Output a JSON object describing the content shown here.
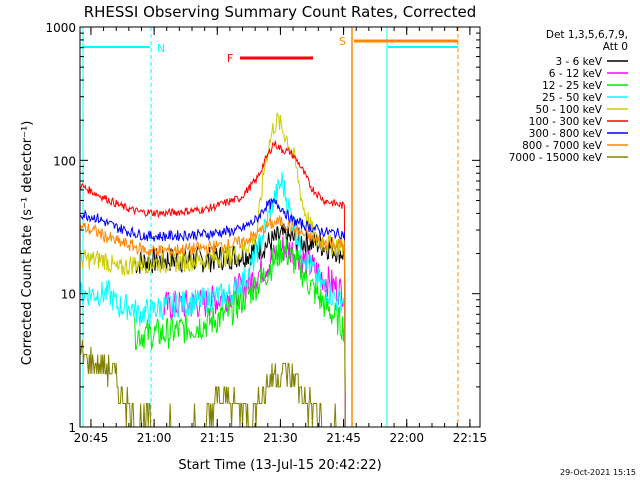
{
  "chart_data": {
    "type": "line",
    "title": "RHESSI Observing Summary Count Rates, Corrected",
    "xlabel": "Start Time (13-Jul-15 20:42:22)",
    "ylabel": "Corrected Count Rate (s⁻¹ detector⁻¹)",
    "yscale": "log",
    "ylim": [
      1,
      1000
    ],
    "xlim_minutes_after_2042": [
      0,
      95
    ],
    "x_ticks": [
      {
        "t": 2.6,
        "label": "20:45"
      },
      {
        "t": 17.6,
        "label": "21:00"
      },
      {
        "t": 32.6,
        "label": "21:15"
      },
      {
        "t": 47.6,
        "label": "21:30"
      },
      {
        "t": 62.6,
        "label": "21:45"
      },
      {
        "t": 77.6,
        "label": "22:00"
      },
      {
        "t": 92.6,
        "label": "22:15"
      }
    ],
    "y_ticks": [
      {
        "v": 1,
        "label": "1"
      },
      {
        "v": 10,
        "label": "10"
      },
      {
        "v": 100,
        "label": "100"
      },
      {
        "v": 1000,
        "label": "1000"
      }
    ],
    "legend_header": [
      "Det 1,3,5,6,7,9,",
      "Att 0"
    ],
    "series": [
      {
        "name": "3 - 6 keV",
        "color": "#000000",
        "points": [
          [
            13,
            17
          ],
          [
            20,
            18
          ],
          [
            30,
            18
          ],
          [
            40,
            20
          ],
          [
            45,
            24
          ],
          [
            48,
            27
          ],
          [
            52,
            25
          ],
          [
            56,
            24
          ],
          [
            60,
            22
          ],
          [
            63,
            20
          ]
        ]
      },
      {
        "name": "6 - 12 keV",
        "color": "#ff00ff",
        "points": [
          [
            20,
            8
          ],
          [
            30,
            8.5
          ],
          [
            36,
            10
          ],
          [
            40,
            12
          ],
          [
            44,
            16
          ],
          [
            48,
            22
          ],
          [
            51,
            21
          ],
          [
            54,
            17
          ],
          [
            58,
            13
          ],
          [
            62,
            10.5
          ],
          [
            63,
            10.5
          ]
        ]
      },
      {
        "name": "12 - 25 keV",
        "color": "#00ee00",
        "points": [
          [
            13,
            5
          ],
          [
            20,
            5
          ],
          [
            30,
            6
          ],
          [
            35,
            7
          ],
          [
            40,
            10
          ],
          [
            44,
            14
          ],
          [
            48,
            22
          ],
          [
            52,
            16
          ],
          [
            56,
            10
          ],
          [
            60,
            7
          ],
          [
            63,
            5.5
          ]
        ]
      },
      {
        "name": "25 - 50 keV",
        "color": "#00ffff",
        "points": [
          [
            0,
            10
          ],
          [
            7,
            10
          ],
          [
            9,
            8
          ],
          [
            12,
            8
          ],
          [
            14,
            7
          ],
          [
            20,
            8
          ],
          [
            30,
            9
          ],
          [
            36,
            10
          ],
          [
            40,
            14
          ],
          [
            43,
            25
          ],
          [
            46,
            50
          ],
          [
            48,
            70
          ],
          [
            50,
            40
          ],
          [
            53,
            20
          ],
          [
            57,
            12
          ],
          [
            61,
            9
          ],
          [
            63,
            9
          ]
        ]
      },
      {
        "name": "50 - 100 keV",
        "color": "#cccc00",
        "points": [
          [
            0,
            18
          ],
          [
            6,
            18
          ],
          [
            9,
            15
          ],
          [
            13,
            17
          ],
          [
            20,
            17
          ],
          [
            30,
            18
          ],
          [
            38,
            20
          ],
          [
            42,
            28
          ],
          [
            44,
            100
          ],
          [
            46,
            180
          ],
          [
            47,
            200
          ],
          [
            49,
            150
          ],
          [
            51,
            100
          ],
          [
            53,
            45
          ],
          [
            56,
            25
          ],
          [
            60,
            23
          ],
          [
            63,
            22
          ]
        ]
      },
      {
        "name": "100 - 300 keV",
        "color": "#ff0000",
        "points": [
          [
            0,
            65
          ],
          [
            3,
            58
          ],
          [
            6,
            52
          ],
          [
            10,
            45
          ],
          [
            14,
            41
          ],
          [
            20,
            40
          ],
          [
            30,
            43
          ],
          [
            38,
            52
          ],
          [
            42,
            72
          ],
          [
            44,
            100
          ],
          [
            46,
            135
          ],
          [
            48,
            120
          ],
          [
            50,
            115
          ],
          [
            52,
            95
          ],
          [
            55,
            62
          ],
          [
            58,
            50
          ],
          [
            61,
            47
          ],
          [
            63,
            45
          ]
        ]
      },
      {
        "name": "300 - 800 keV",
        "color": "#0000ff",
        "points": [
          [
            0,
            40
          ],
          [
            4,
            37
          ],
          [
            8,
            32
          ],
          [
            12,
            29
          ],
          [
            16,
            27
          ],
          [
            20,
            27
          ],
          [
            30,
            28
          ],
          [
            38,
            30
          ],
          [
            42,
            36
          ],
          [
            44,
            45
          ],
          [
            46,
            48
          ],
          [
            48,
            44
          ],
          [
            50,
            36
          ],
          [
            54,
            32
          ],
          [
            58,
            29
          ],
          [
            63,
            28
          ]
        ]
      },
      {
        "name": "800 - 7000 keV",
        "color": "#ff8800",
        "points": [
          [
            0,
            32
          ],
          [
            4,
            29
          ],
          [
            8,
            25
          ],
          [
            12,
            23
          ],
          [
            16,
            21
          ],
          [
            20,
            21
          ],
          [
            30,
            22
          ],
          [
            38,
            24
          ],
          [
            42,
            28
          ],
          [
            45,
            33
          ],
          [
            48,
            35
          ],
          [
            51,
            30
          ],
          [
            55,
            26
          ],
          [
            59,
            24
          ],
          [
            63,
            23
          ]
        ]
      },
      {
        "name": "7000 - 15000 keV",
        "color": "#808000",
        "points": [
          [
            0,
            3.5
          ],
          [
            3,
            3
          ],
          [
            6,
            2.8
          ],
          [
            8,
            2.5
          ],
          [
            10,
            1.6
          ],
          [
            12,
            1.4
          ],
          [
            13,
            1.2
          ],
          [
            14,
            1.1
          ],
          [
            18,
            1
          ],
          [
            30,
            1
          ],
          [
            32,
            1.5
          ],
          [
            35,
            1.7
          ],
          [
            38,
            1.4
          ],
          [
            41,
            1.2
          ],
          [
            44,
            2
          ],
          [
            46,
            2.5
          ],
          [
            48,
            2.6
          ],
          [
            50,
            2.4
          ],
          [
            52,
            2
          ],
          [
            54,
            1.5
          ],
          [
            56,
            1.3
          ],
          [
            58,
            1
          ],
          [
            63,
            1
          ]
        ]
      }
    ],
    "attenuator_state": {
      "label": "S",
      "color": "#ff8800",
      "level": 760
    },
    "flare_flag": {
      "label": "F",
      "color": "#ff0000",
      "level": 560
    },
    "night_flag": {
      "label": "N",
      "color": "#00ffff",
      "level": 650
    },
    "grid": false,
    "legend": "right"
  },
  "footer": {
    "timestamp": "29-Oct-2021 15:15"
  }
}
